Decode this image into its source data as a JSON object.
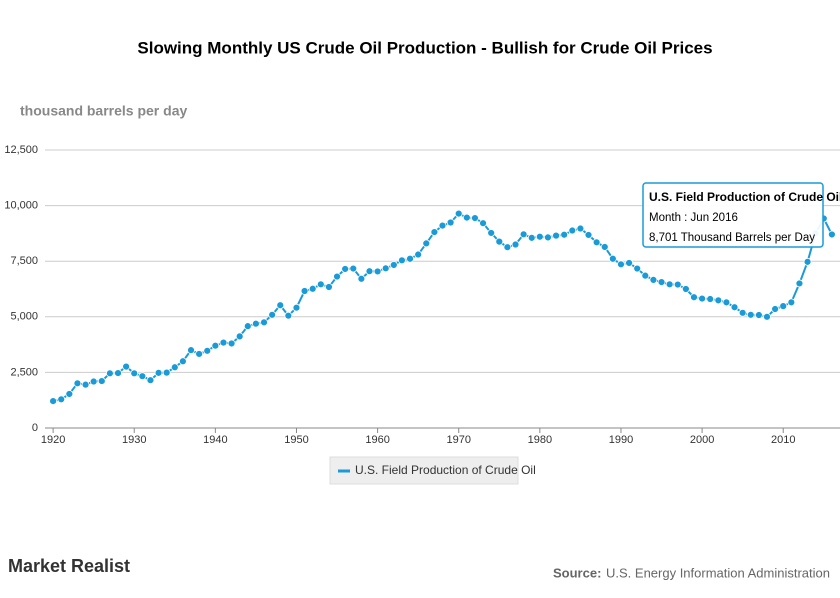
{
  "chart_data": {
    "type": "line",
    "title": "Slowing  Monthly US Crude Oil Production  - Bullish for Crude Oil Prices",
    "y_axis_label": "thousand barrels per day",
    "x": [
      1920,
      1921,
      1922,
      1923,
      1924,
      1925,
      1926,
      1927,
      1928,
      1929,
      1930,
      1931,
      1932,
      1933,
      1934,
      1935,
      1936,
      1937,
      1938,
      1939,
      1940,
      1941,
      1942,
      1943,
      1944,
      1945,
      1946,
      1947,
      1948,
      1949,
      1950,
      1951,
      1952,
      1953,
      1954,
      1955,
      1956,
      1957,
      1958,
      1959,
      1960,
      1961,
      1962,
      1963,
      1964,
      1965,
      1966,
      1967,
      1968,
      1969,
      1970,
      1971,
      1972,
      1973,
      1974,
      1975,
      1976,
      1977,
      1978,
      1979,
      1980,
      1981,
      1982,
      1983,
      1984,
      1985,
      1986,
      1987,
      1988,
      1989,
      1990,
      1991,
      1992,
      1993,
      1994,
      1995,
      1996,
      1997,
      1998,
      1999,
      2000,
      2001,
      2002,
      2003,
      2004,
      2005,
      2006,
      2007,
      2008,
      2009,
      2010,
      2011,
      2012,
      2013,
      2014,
      2015,
      2016
    ],
    "series": [
      {
        "name": "U.S. Field Production of Crude Oil",
        "color": "#1a9bd7",
        "values": [
          1210,
          1290,
          1530,
          2010,
          1950,
          2090,
          2110,
          2460,
          2470,
          2760,
          2460,
          2330,
          2150,
          2480,
          2490,
          2730,
          3000,
          3500,
          3330,
          3470,
          3700,
          3840,
          3800,
          4120,
          4580,
          4690,
          4750,
          5090,
          5520,
          5050,
          5410,
          6160,
          6260,
          6460,
          6340,
          6810,
          7150,
          7170,
          6710,
          7050,
          7040,
          7180,
          7330,
          7540,
          7610,
          7800,
          8300,
          8810,
          9100,
          9240,
          9640,
          9460,
          9440,
          9210,
          8770,
          8380,
          8130,
          8250,
          8710,
          8550,
          8600,
          8570,
          8650,
          8690,
          8880,
          8970,
          8680,
          8350,
          8140,
          7610,
          7360,
          7420,
          7170,
          6850,
          6660,
          6560,
          6460,
          6450,
          6250,
          5880,
          5820,
          5800,
          5740,
          5650,
          5430,
          5180,
          5090,
          5080,
          5000,
          5350,
          5480,
          5650,
          6500,
          7470,
          8760,
          9420,
          8701
        ]
      }
    ],
    "xlim": [
      1919,
      2017
    ],
    "xticks": [
      1920,
      1930,
      1940,
      1950,
      1960,
      1970,
      1980,
      1990,
      2000,
      2010
    ],
    "ylim": [
      0,
      12500
    ],
    "yticks": [
      0,
      {
        "value": 2500,
        "label": "2,500"
      },
      {
        "value": 5000,
        "label": "5,000"
      },
      {
        "value": 7500,
        "label": "7,500"
      },
      {
        "value": 10000,
        "label": "10,000"
      },
      {
        "value": 12500,
        "label": "12,500"
      }
    ],
    "grid": true,
    "tooltip": {
      "title": "U.S. Field Production of Crude Oil",
      "line1": "Month : Jun 2016",
      "line2": "8,701 Thousand Barrels per Day"
    },
    "brand": "Market Realist",
    "source_label": "Source:",
    "source": "U.S. Energy Information Administration"
  }
}
